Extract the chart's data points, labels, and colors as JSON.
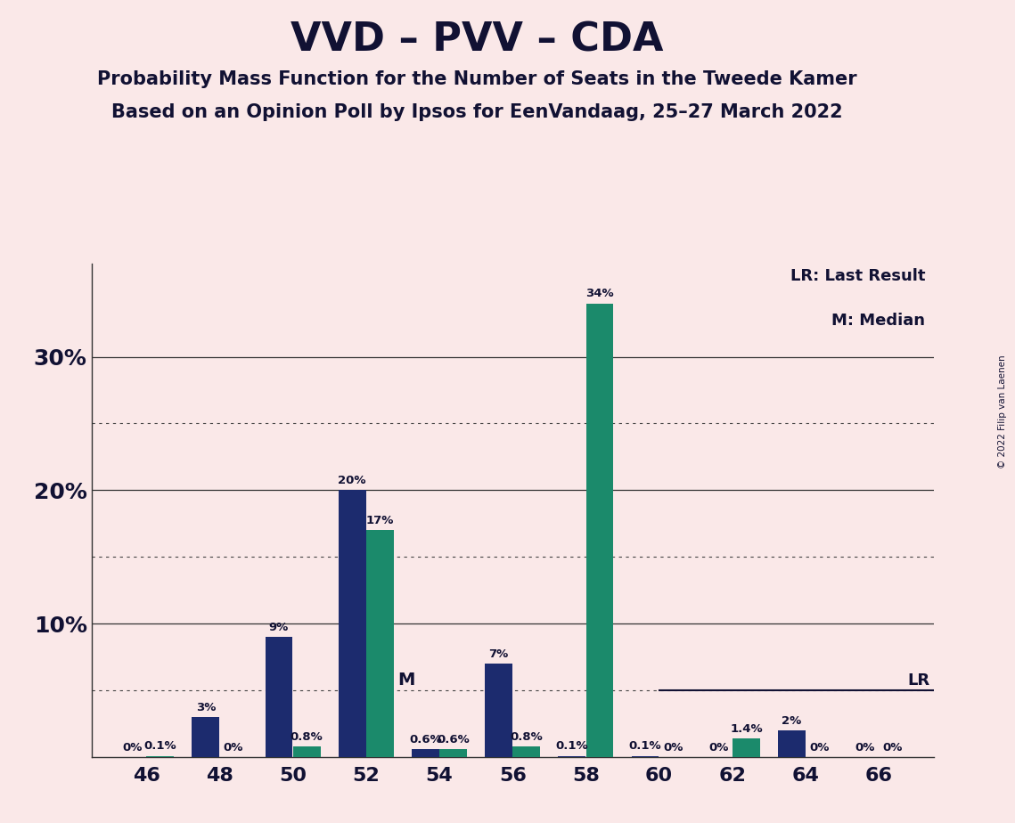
{
  "title": "VVD – PVV – CDA",
  "subtitle1": "Probability Mass Function for the Number of Seats in the Tweede Kamer",
  "subtitle2": "Based on an Opinion Poll by Ipsos for EenVandaag, 25–27 March 2022",
  "copyright": "© 2022 Filip van Laenen",
  "x_labels": [
    46,
    48,
    50,
    52,
    54,
    56,
    58,
    60,
    62,
    64,
    66
  ],
  "navy_values": [
    0.0,
    3.0,
    9.0,
    20.0,
    0.6,
    7.0,
    0.1,
    0.1,
    0.0,
    2.0,
    0.0
  ],
  "teal_values": [
    0.1,
    0.0,
    0.8,
    17.0,
    0.6,
    0.8,
    34.0,
    0.0,
    1.4,
    0.0,
    0.0
  ],
  "navy_labels": [
    "0%",
    "3%",
    "9%",
    "20%",
    "0.6%",
    "7%",
    "0.1%",
    "0.1%",
    "0%",
    "2%",
    "0%"
  ],
  "teal_labels": [
    "0.1%",
    "0%",
    "0.8%",
    "17%",
    "0.6%",
    "0.8%",
    "34%",
    "0%",
    "1.4%",
    "0%",
    "0%"
  ],
  "navy_color": "#1C2B6E",
  "teal_color": "#1B8A6B",
  "background_color": "#FAE8E8",
  "median_seat": 54,
  "lr_seat": 60,
  "lr_y": 5.0,
  "yticks": [
    0,
    10,
    20,
    30
  ],
  "ytick_labels": [
    "",
    "10%",
    "20%",
    "30%"
  ],
  "dotted_yticks": [
    5,
    15,
    25
  ],
  "ylim": [
    0,
    37
  ],
  "legend_lr": "LR: Last Result",
  "legend_m": "M: Median",
  "xmin": 44.5,
  "xmax": 67.5
}
